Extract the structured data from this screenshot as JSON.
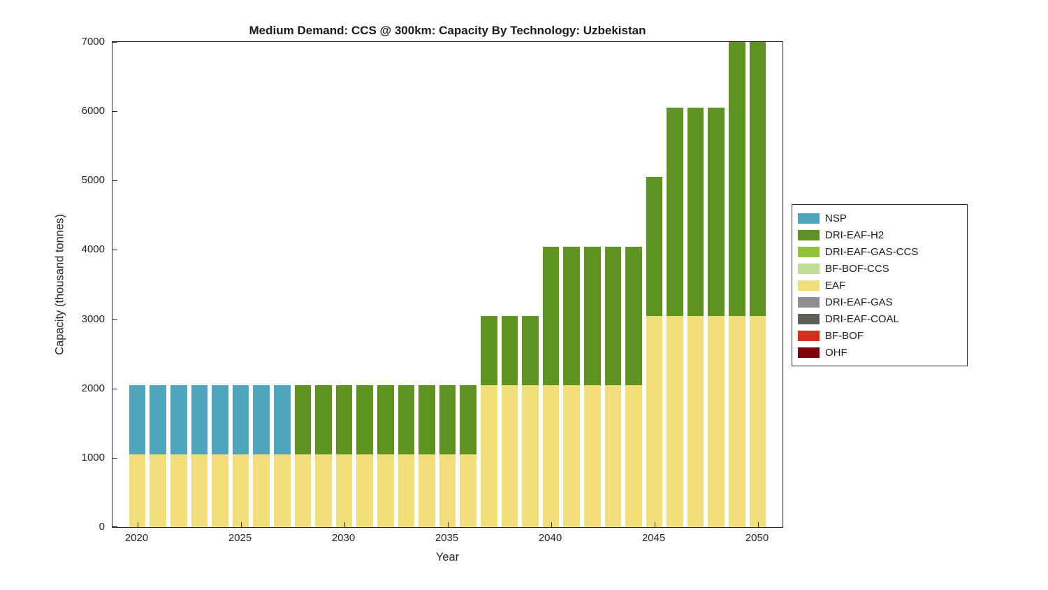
{
  "chart_data": {
    "type": "bar",
    "stacked": true,
    "title": "Medium Demand: CCS @ 300km: Capacity By Technology: Uzbekistan",
    "xlabel": "Year",
    "ylabel": "Capacity (thousand tonnes)",
    "xlim": [
      2018.8,
      2051.2
    ],
    "ylim": [
      0,
      7000
    ],
    "bar_width": 0.8,
    "grid": false,
    "legend_position": "right-outside",
    "xticks": [
      2020,
      2025,
      2030,
      2035,
      2040,
      2045,
      2050
    ],
    "yticks": [
      0,
      1000,
      2000,
      3000,
      4000,
      5000,
      6000,
      7000
    ],
    "years": [
      2020,
      2021,
      2022,
      2023,
      2024,
      2025,
      2026,
      2027,
      2028,
      2029,
      2030,
      2031,
      2032,
      2033,
      2034,
      2035,
      2036,
      2037,
      2038,
      2039,
      2040,
      2041,
      2042,
      2043,
      2044,
      2045,
      2046,
      2047,
      2048,
      2049,
      2050
    ],
    "series": [
      {
        "name": "EAF",
        "color": "#F3DE7C",
        "values": [
          1050,
          1050,
          1050,
          1050,
          1050,
          1050,
          1050,
          1050,
          1050,
          1050,
          1050,
          1050,
          1050,
          1050,
          1050,
          1050,
          1050,
          2050,
          2050,
          2050,
          2050,
          2050,
          2050,
          2050,
          2050,
          3050,
          3050,
          3050,
          3050,
          3050,
          3050
        ]
      },
      {
        "name": "NSP",
        "color": "#4FA5BC",
        "values": [
          1000,
          1000,
          1000,
          1000,
          1000,
          1000,
          1000,
          1000,
          0,
          0,
          0,
          0,
          0,
          0,
          0,
          0,
          0,
          0,
          0,
          0,
          0,
          0,
          0,
          0,
          0,
          0,
          0,
          0,
          0,
          0,
          0
        ]
      },
      {
        "name": "DRI-EAF-H2",
        "color": "#5E9322",
        "values": [
          0,
          0,
          0,
          0,
          0,
          0,
          0,
          0,
          1000,
          1000,
          1000,
          1000,
          1000,
          1000,
          1000,
          1000,
          1000,
          1000,
          1000,
          1000,
          2000,
          2000,
          2000,
          2000,
          2000,
          2000,
          3000,
          3000,
          3000,
          4000,
          4000
        ]
      }
    ],
    "legend": [
      {
        "label": "NSP",
        "color": "#4FA5BC"
      },
      {
        "label": "DRI-EAF-H2",
        "color": "#5E9322"
      },
      {
        "label": "DRI-EAF-GAS-CCS",
        "color": "#92C13E"
      },
      {
        "label": "BF-BOF-CCS",
        "color": "#C1DC96"
      },
      {
        "label": "EAF",
        "color": "#F3DE7C"
      },
      {
        "label": "DRI-EAF-GAS",
        "color": "#8F8F8F"
      },
      {
        "label": "DRI-EAF-COAL",
        "color": "#5C6058"
      },
      {
        "label": "BF-BOF",
        "color": "#D32F1E"
      },
      {
        "label": "OHF",
        "color": "#7E0308"
      }
    ]
  }
}
